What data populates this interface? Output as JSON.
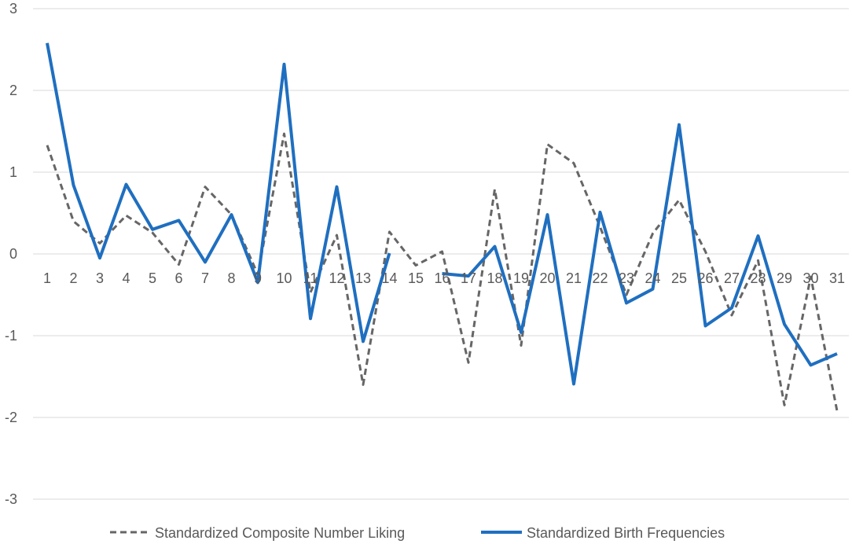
{
  "chart_data": {
    "type": "line",
    "title": "",
    "xlabel": "",
    "ylabel": "",
    "ylim": [
      -3,
      3
    ],
    "y_ticks": [
      "3",
      "2",
      "1",
      "0",
      "-1",
      "-2",
      "-3"
    ],
    "y_tick_values": [
      3,
      2,
      1,
      0,
      -1,
      -2,
      -3
    ],
    "categories": [
      "1",
      "2",
      "3",
      "4",
      "5",
      "6",
      "7",
      "8",
      "9",
      "10",
      "11",
      "12",
      "13",
      "14",
      "15",
      "16",
      "17",
      "18",
      "19",
      "20",
      "21",
      "22",
      "23",
      "24",
      "25",
      "26",
      "27",
      "28",
      "29",
      "30",
      "31"
    ],
    "grid": true,
    "legend_position": "bottom",
    "series": [
      {
        "name": "Standardized Composite Number Liking",
        "color": "#666666",
        "style": "dashed",
        "values": [
          1.33,
          0.4,
          0.13,
          0.47,
          0.26,
          -0.13,
          0.82,
          0.48,
          -0.25,
          1.47,
          -0.47,
          0.23,
          -1.6,
          0.27,
          -0.14,
          0.03,
          -1.33,
          0.79,
          -1.12,
          1.34,
          1.11,
          0.33,
          -0.5,
          0.25,
          0.66,
          0.03,
          -0.75,
          -0.08,
          -1.85,
          -0.28,
          -1.92
        ]
      },
      {
        "name": "Standardized Birth Frequencies",
        "color": "#1f6fc0",
        "style": "solid",
        "values": [
          2.58,
          0.84,
          -0.05,
          0.85,
          0.3,
          0.41,
          -0.1,
          0.48,
          -0.35,
          2.32,
          -0.79,
          0.82,
          -1.07,
          0.01,
          null,
          -0.24,
          -0.27,
          0.09,
          -0.96,
          0.48,
          -1.59,
          0.51,
          -0.6,
          -0.43,
          1.58,
          -0.88,
          -0.66,
          0.22,
          -0.86,
          -1.36,
          -1.22
        ]
      }
    ]
  }
}
